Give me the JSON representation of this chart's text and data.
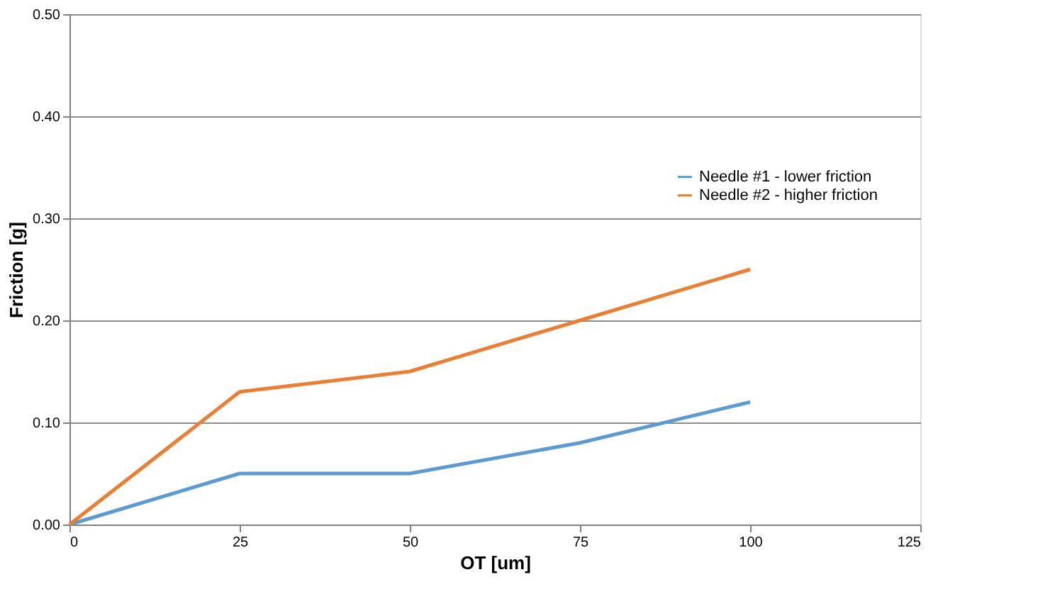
{
  "chart_data": {
    "type": "line",
    "xlabel": "OT [um]",
    "ylabel": "Friction [g]",
    "x": [
      0,
      25,
      50,
      75,
      100
    ],
    "series": [
      {
        "name": "Needle #1 - lower friction",
        "color": "#5b9bd5",
        "values": [
          0,
          0.05,
          0.05,
          0.08,
          0.12
        ]
      },
      {
        "name": "Needle #2 - higher friction",
        "color": "#ed7d31",
        "values": [
          0,
          0.13,
          0.15,
          0.2,
          0.25
        ]
      }
    ],
    "xlim": [
      0,
      125
    ],
    "xticks": [
      0,
      25,
      50,
      75,
      100,
      125
    ],
    "ylim": [
      0,
      0.5
    ],
    "yticks": [
      {
        "value": 0,
        "label": "0.00"
      },
      {
        "value": 0.1,
        "label": "0.10"
      },
      {
        "value": 0.2,
        "label": "0.20"
      },
      {
        "value": 0.3,
        "label": "0.30"
      },
      {
        "value": 0.4,
        "label": "0.40"
      },
      {
        "value": 0.5,
        "label": "0.50"
      }
    ],
    "grid": "y",
    "legend": "right",
    "marker": "none",
    "line_style": "solid"
  }
}
